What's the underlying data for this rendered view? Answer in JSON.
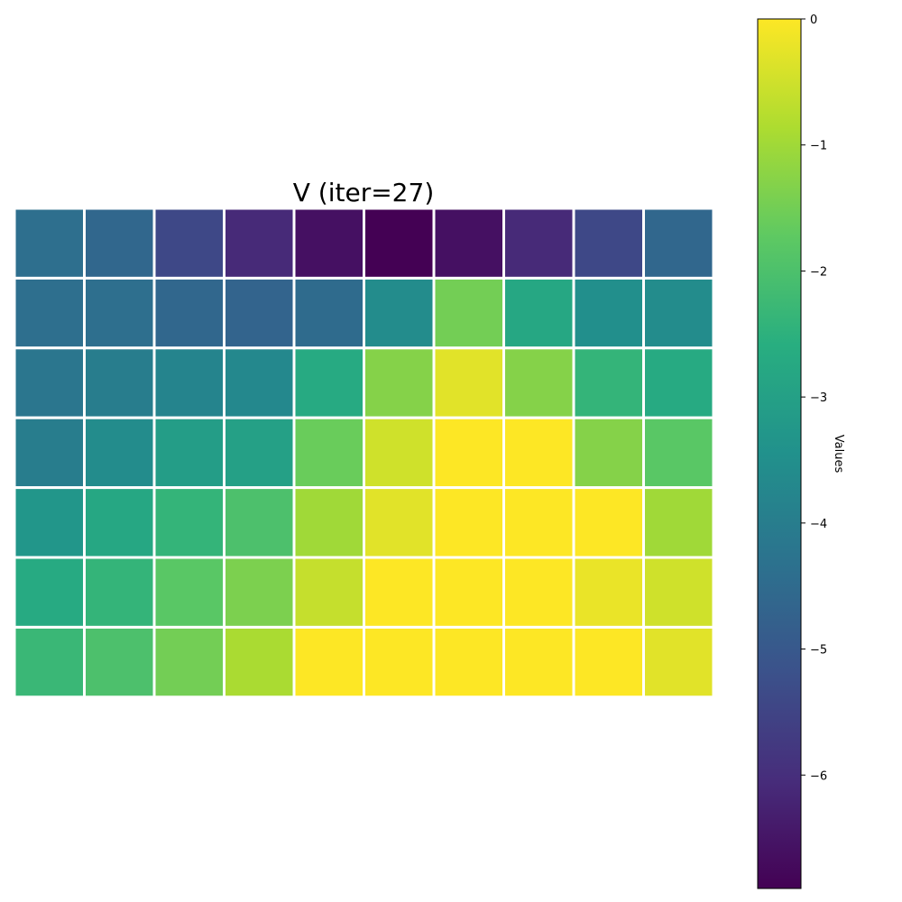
{
  "chart_data": {
    "type": "heatmap",
    "title": "V (iter=27)",
    "rows": 7,
    "cols": 10,
    "values": [
      [
        -4.4,
        -4.6,
        -5.4,
        -6.1,
        -6.6,
        -6.9,
        -6.6,
        -6.1,
        -5.4,
        -4.6
      ],
      [
        -4.4,
        -4.4,
        -4.6,
        -4.7,
        -4.5,
        -3.6,
        -1.5,
        -2.8,
        -3.5,
        -3.6
      ],
      [
        -4.2,
        -4.0,
        -3.8,
        -3.7,
        -2.7,
        -1.3,
        -0.3,
        -1.3,
        -2.4,
        -2.7
      ],
      [
        -4.0,
        -3.6,
        -3.1,
        -3.0,
        -1.6,
        -0.5,
        0.0,
        0.0,
        -1.3,
        -1.8
      ],
      [
        -3.3,
        -2.8,
        -2.4,
        -2.0,
        -1.0,
        -0.3,
        0.0,
        0.0,
        0.0,
        -1.0
      ],
      [
        -2.7,
        -2.4,
        -1.8,
        -1.4,
        -0.6,
        0.0,
        0.0,
        0.0,
        -0.2,
        -0.5
      ],
      [
        -2.3,
        -2.0,
        -1.5,
        -0.9,
        0.0,
        0.0,
        0.0,
        0.0,
        0.0,
        -0.3
      ]
    ],
    "colormap": "viridis",
    "vmin": -6.9,
    "vmax": 0.0,
    "cell_border_color": "#ffffff",
    "colorbar": {
      "label": "Values",
      "ticks": [
        0,
        -1,
        -2,
        -3,
        -4,
        -5,
        -6
      ],
      "tick_labels": [
        "0",
        "−1",
        "−2",
        "−3",
        "−4",
        "−5",
        "−6"
      ]
    }
  }
}
